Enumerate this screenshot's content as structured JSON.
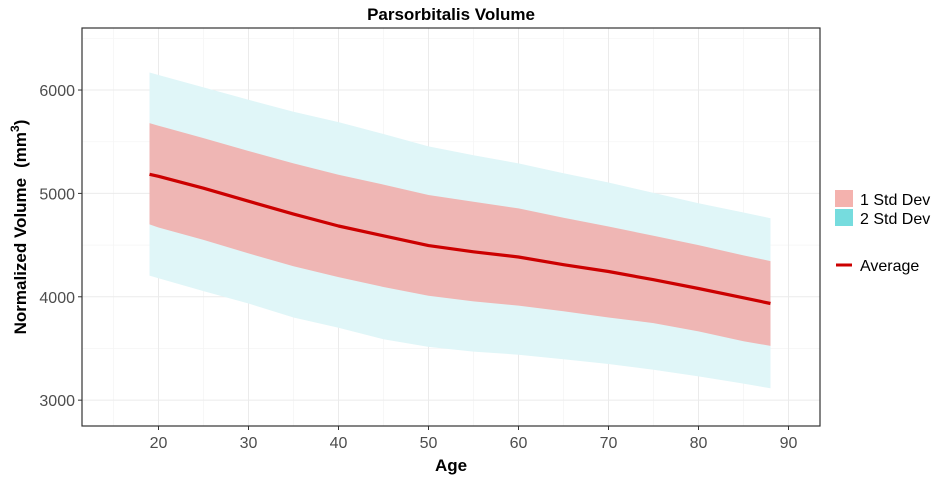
{
  "chart_data": {
    "type": "area",
    "title": "Parsorbitalis Volume",
    "xlabel": "Age",
    "ylabel": "Normalized Volume",
    "ylabel_unit": "(mm",
    "ylabel_unit_sup": "3",
    "ylabel_unit_close": ")",
    "xlim": [
      11.5,
      93.5
    ],
    "ylim": [
      2750,
      6600
    ],
    "x_ticks": [
      20,
      30,
      40,
      50,
      60,
      70,
      80,
      90
    ],
    "x_tick_labels": [
      "20",
      "30",
      "40",
      "50",
      "60",
      "70",
      "80",
      "90"
    ],
    "y_ticks": [
      3000,
      4000,
      5000,
      6000
    ],
    "y_tick_labels": [
      "3000",
      "4000",
      "5000",
      "6000"
    ],
    "x": [
      19,
      20,
      25,
      30,
      35,
      40,
      45,
      50,
      55,
      60,
      65,
      70,
      75,
      80,
      85,
      88
    ],
    "series": [
      {
        "name": "Average",
        "color": "#cc0000",
        "values": [
          5185,
          5165,
          5050,
          4925,
          4800,
          4685,
          4590,
          4495,
          4435,
          4385,
          4310,
          4245,
          4165,
          4080,
          3990,
          3935
        ]
      }
    ],
    "bands": [
      {
        "name": "2 Std Dev",
        "color": "#e0f6f8",
        "legend_color": "#76dcde",
        "upper": [
          6170,
          6145,
          6025,
          5905,
          5790,
          5690,
          5575,
          5455,
          5370,
          5290,
          5195,
          5105,
          5005,
          4905,
          4815,
          4760
        ],
        "lower": [
          4205,
          4180,
          4055,
          3935,
          3800,
          3700,
          3590,
          3515,
          3470,
          3440,
          3395,
          3350,
          3295,
          3230,
          3160,
          3115
        ]
      },
      {
        "name": "1 Std Dev",
        "color": "#efb6b4",
        "legend_color": "#f4b2ae",
        "upper": [
          5680,
          5655,
          5535,
          5410,
          5290,
          5180,
          5085,
          4985,
          4920,
          4855,
          4765,
          4680,
          4590,
          4500,
          4400,
          4345
        ],
        "lower": [
          4700,
          4670,
          4550,
          4420,
          4295,
          4190,
          4095,
          4010,
          3955,
          3915,
          3860,
          3800,
          3745,
          3665,
          3570,
          3525
        ]
      }
    ],
    "legend": {
      "placement": "right",
      "items": [
        "1 Std Dev",
        "2 Std Dev",
        "Average"
      ]
    }
  },
  "colors": {
    "panel_border": "#333333",
    "grid_major": "#ebebeb",
    "grid_minor": "#f5f5f5",
    "tick_text": "#4d4d4d"
  }
}
